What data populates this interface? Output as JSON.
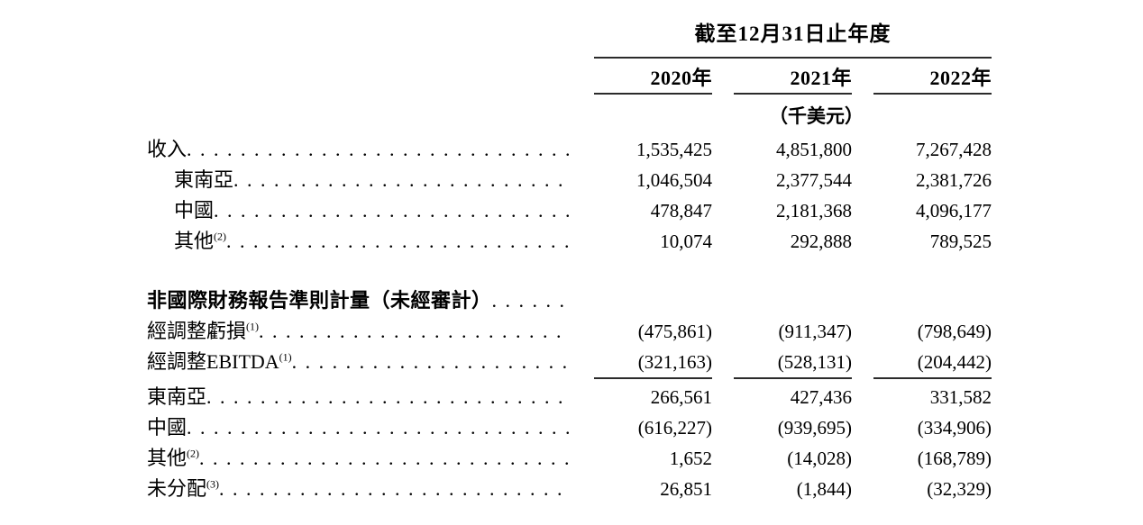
{
  "table": {
    "period_header": "截至12月31日止年度",
    "columns": [
      "2020年",
      "2021年",
      "2022年"
    ],
    "unit_label": "（千美元）",
    "sections": [
      {
        "rows": [
          {
            "label": "收入",
            "sup": "",
            "indent": false,
            "bold": false,
            "values": [
              "1,535,425",
              "4,851,800",
              "7,267,428"
            ]
          },
          {
            "label": "東南亞",
            "sup": "",
            "indent": true,
            "bold": false,
            "values": [
              "1,046,504",
              "2,377,544",
              "2,381,726"
            ]
          },
          {
            "label": "中國",
            "sup": "",
            "indent": true,
            "bold": false,
            "values": [
              "478,847",
              "2,181,368",
              "4,096,177"
            ]
          },
          {
            "label": "其他",
            "sup": "(2)",
            "indent": true,
            "bold": false,
            "values": [
              "10,074",
              "292,888",
              "789,525"
            ]
          }
        ]
      },
      {
        "rows": [
          {
            "label": "非國際財務報告準則計量（未經審計）",
            "sup": "",
            "indent": false,
            "bold": true,
            "values": [
              "",
              "",
              ""
            ]
          },
          {
            "label": "經調整虧損",
            "sup": "(1)",
            "indent": false,
            "bold": false,
            "values": [
              "(475,861)",
              "(911,347)",
              "(798,649)"
            ]
          },
          {
            "label": "經調整EBITDA",
            "sup": "(1)",
            "indent": false,
            "bold": false,
            "underline_after": true,
            "values": [
              "(321,163)",
              "(528,131)",
              "(204,442)"
            ]
          },
          {
            "label": "東南亞",
            "sup": "",
            "indent": false,
            "bold": false,
            "group_tail": true,
            "values": [
              "266,561",
              "427,436",
              "331,582"
            ]
          },
          {
            "label": "中國",
            "sup": "",
            "indent": false,
            "bold": false,
            "values": [
              "(616,227)",
              "(939,695)",
              "(334,906)"
            ]
          },
          {
            "label": "其他",
            "sup": "(2)",
            "indent": false,
            "bold": false,
            "values": [
              "1,652",
              "(14,028)",
              "(168,789)"
            ]
          },
          {
            "label": "未分配",
            "sup": "(3)",
            "indent": false,
            "bold": false,
            "values": [
              "26,851",
              "(1,844)",
              "(32,329)"
            ]
          }
        ]
      }
    ]
  }
}
